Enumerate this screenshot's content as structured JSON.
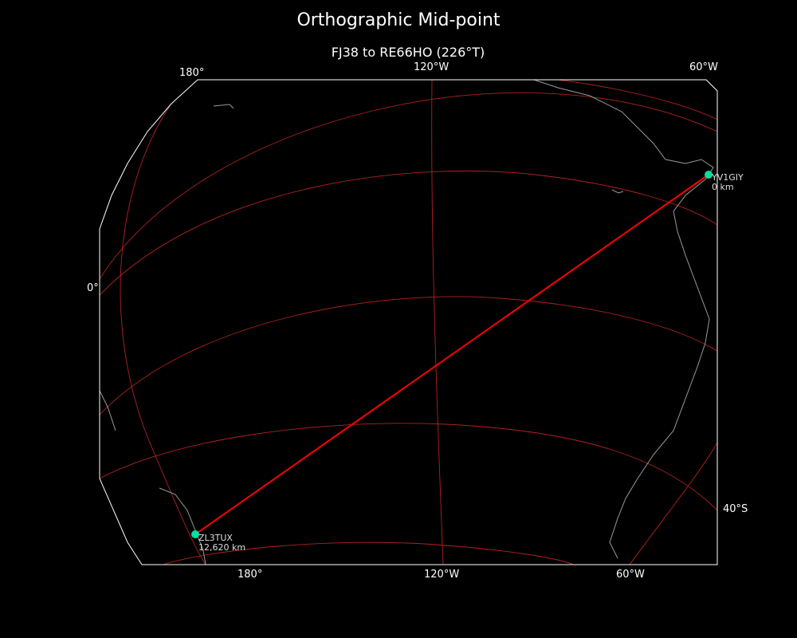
{
  "title": "Orthographic Mid-point",
  "subtitle": "FJ38 to RE66HO (226°T)",
  "projection": "orthographic",
  "top_ticks": [
    "180°",
    "120°W",
    "60°W"
  ],
  "bottom_ticks": [
    "180°",
    "120°W",
    "60°W"
  ],
  "left_ticks": [
    "0°"
  ],
  "right_ticks": [
    "40°S"
  ],
  "stations": [
    {
      "call": "YV1GIY",
      "distance": "0 km"
    },
    {
      "call": "ZL3TUX",
      "distance": "12,620 km"
    }
  ],
  "colors": {
    "background": "#000000",
    "path": "#ff0000",
    "graticule": "#b22222",
    "coast": "#999999",
    "station": "#00e0a0",
    "frame": "#ffffff"
  }
}
